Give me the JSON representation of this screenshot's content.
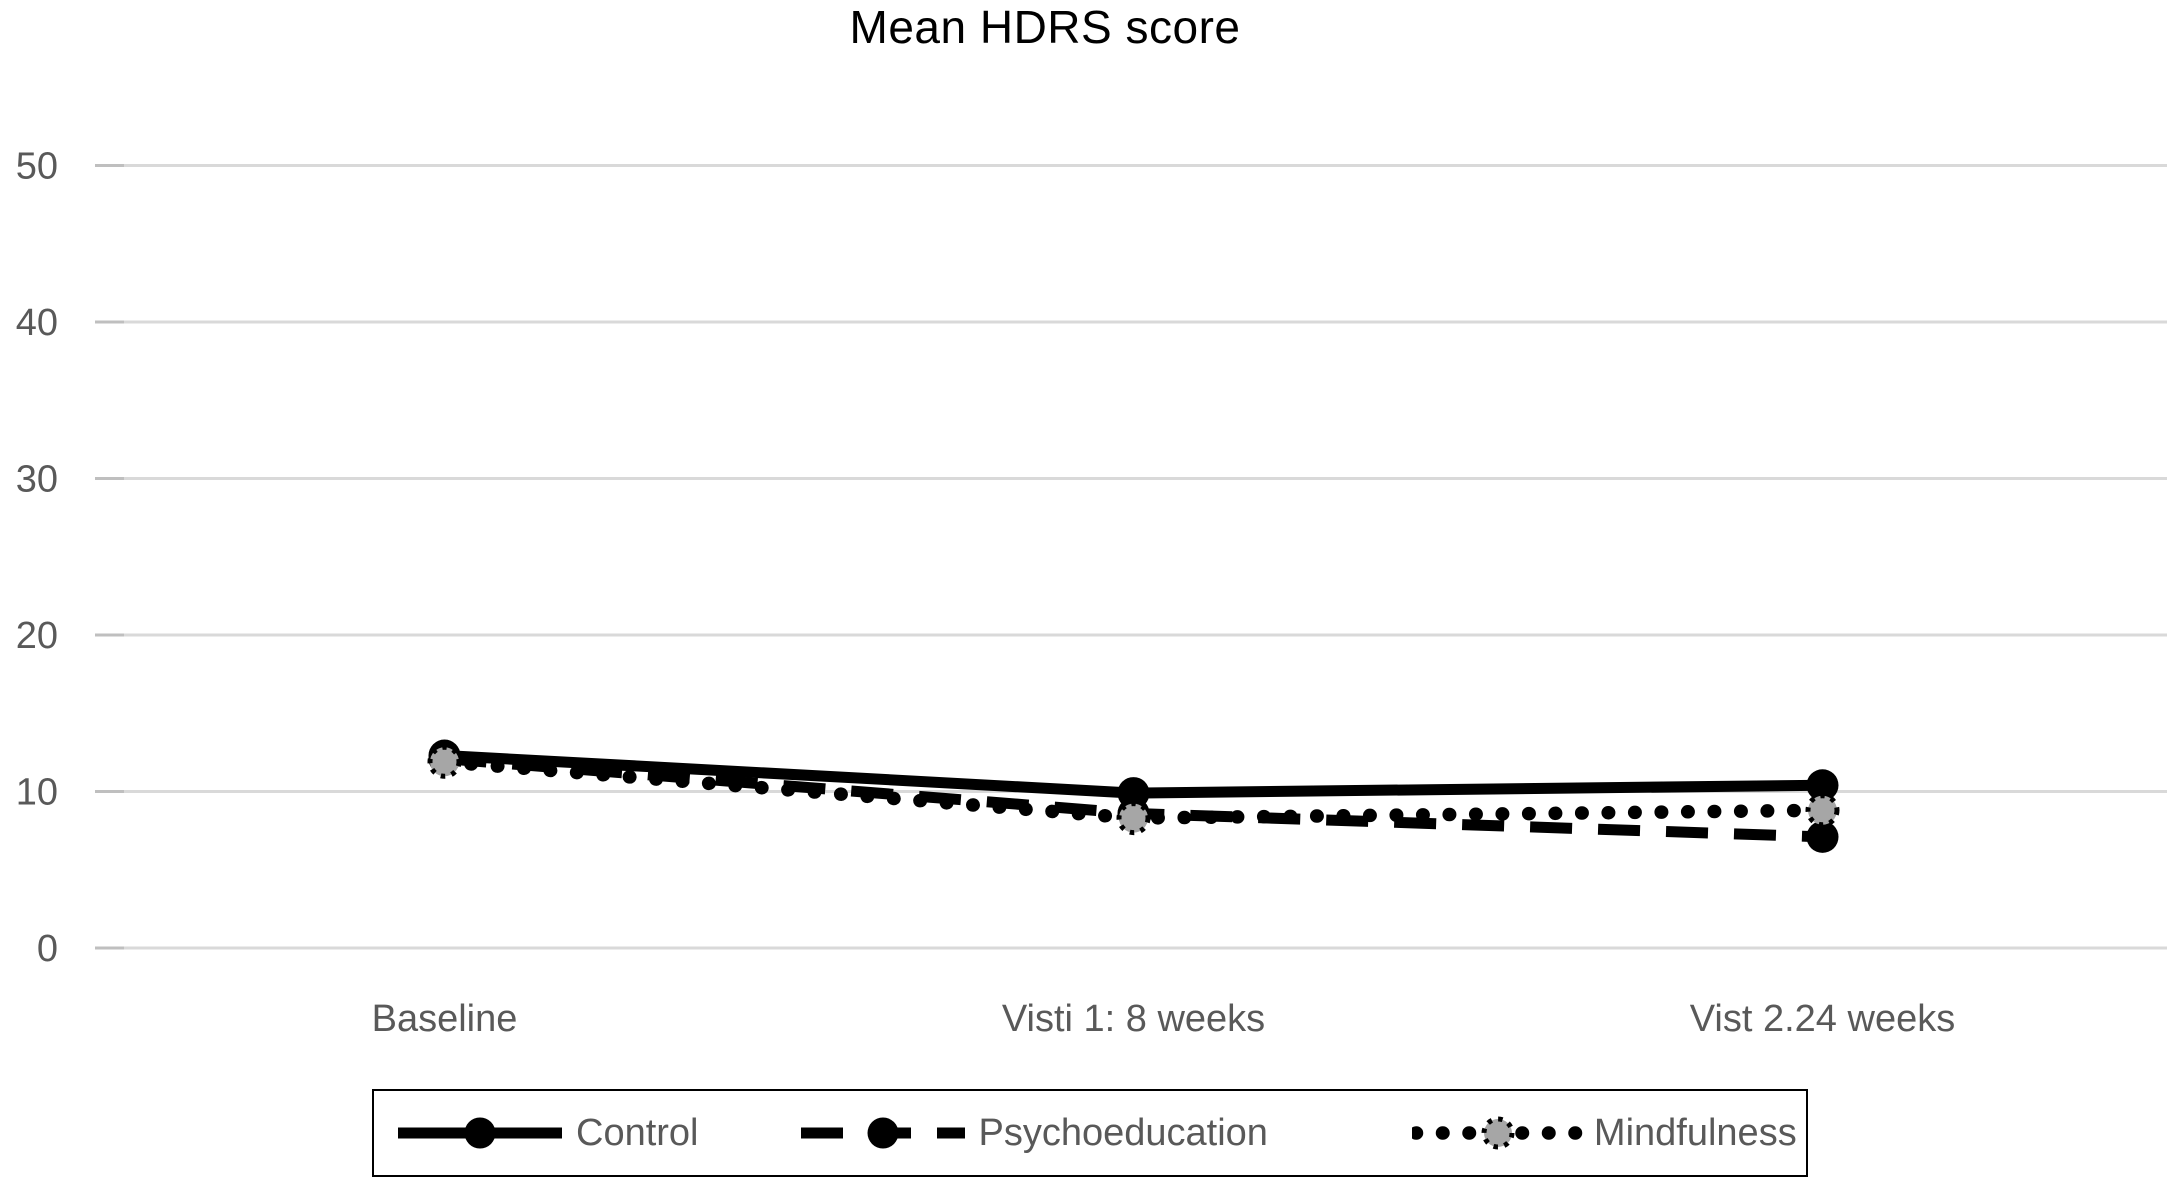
{
  "page": {
    "background": "#ffffff"
  },
  "chart_data": {
    "type": "line",
    "title": "Mean HDRS score",
    "categories": [
      "Baseline",
      "Visti 1: 8 weeks",
      "Vist 2.24 weeks"
    ],
    "series": [
      {
        "name": "Control",
        "values": [
          12.3,
          9.9,
          10.4
        ],
        "line_style": "solid",
        "marker": "black-filled-circle",
        "color": "#000000"
      },
      {
        "name": "Psychoeducation",
        "values": [
          12.1,
          8.6,
          7.1
        ],
        "line_style": "dashed",
        "marker": "black-filled-circle",
        "color": "#000000"
      },
      {
        "name": "Mindfulness",
        "values": [
          11.9,
          8.3,
          8.8
        ],
        "line_style": "dotted",
        "marker": "gray-circle-dotted-border",
        "color": "#000000",
        "marker_fill": "#a6a6a6"
      }
    ],
    "xlabel": "",
    "ylabel": "",
    "ylim": [
      0,
      50
    ],
    "yticks": [
      0,
      10,
      20,
      30,
      40,
      50
    ],
    "grid": "horizontal-only",
    "gridline_color": "#d9d9d9",
    "tick_color": "#bfbfbf",
    "axis_label_color": "#595959",
    "legend_position": "bottom-center",
    "legend_border_color": "#000000",
    "legend_text_color": "#595959"
  }
}
